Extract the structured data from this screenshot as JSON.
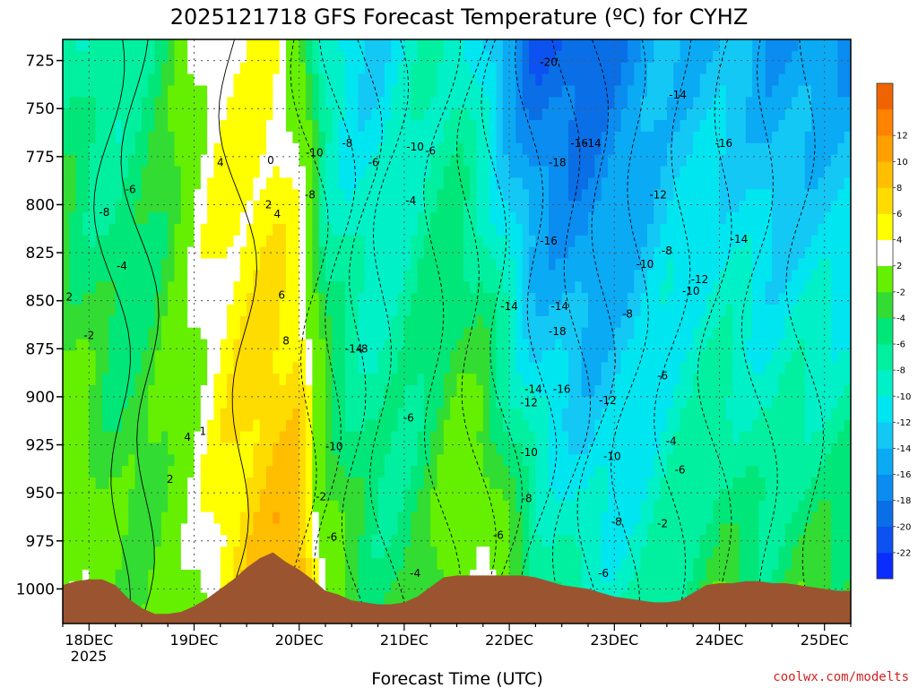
{
  "chart_data": {
    "type": "heatmap",
    "title": "2025121718 GFS Forecast Temperature (ºC) for CYHZ",
    "xlabel": "Forecast Time (UTC)",
    "ylabel": "",
    "credit": "coolwx.com/modelts",
    "y_axis": {
      "reversed": true,
      "ylim": [
        1018,
        714
      ],
      "ticks": [
        725,
        750,
        775,
        800,
        825,
        850,
        875,
        900,
        925,
        950,
        975,
        1000
      ],
      "tick_labels": [
        "725",
        "750",
        "775",
        "800",
        "825",
        "850",
        "875",
        "900",
        "925",
        "950",
        "975",
        "1000"
      ]
    },
    "x_axis": {
      "xlim": [
        0,
        180
      ],
      "ticks": [
        6,
        30,
        54,
        78,
        102,
        126,
        150,
        174
      ],
      "tick_labels": [
        "18DEC",
        "19DEC",
        "20DEC",
        "21DEC",
        "22DEC",
        "23DEC",
        "24DEC",
        "25DEC"
      ],
      "year_label": "2025"
    },
    "grid": true,
    "colorbar": {
      "levels": [
        -24,
        -22,
        -20,
        -18,
        -16,
        -14,
        -12,
        -10,
        -8,
        -6,
        -4,
        -2,
        2,
        4,
        6,
        8,
        10,
        12,
        14
      ],
      "labels": [
        "-22",
        "-20",
        "-18",
        "-16",
        "-14",
        "-12",
        "-10",
        "-8",
        "-6",
        "-4",
        "-2",
        "2",
        "4",
        "6",
        "8",
        "10",
        "12"
      ],
      "colors": [
        "#0a2cff",
        "#0c52f0",
        "#0a6ee6",
        "#0a8cf0",
        "#0aaaf5",
        "#14c8f5",
        "#00e6f0",
        "#00f0c8",
        "#00f0a0",
        "#00e678",
        "#32dc32",
        "#64f000",
        "#ffffff",
        "#ffff00",
        "#ffdc00",
        "#ffbe00",
        "#ffa000",
        "#ff8200",
        "#f06400"
      ]
    },
    "terrain_color": "#9a5530",
    "terrain_pressure": [
      [
        0,
        998
      ],
      [
        3,
        996
      ],
      [
        6,
        995
      ],
      [
        9,
        995
      ],
      [
        12,
        998
      ],
      [
        15,
        1005
      ],
      [
        18,
        1010
      ],
      [
        21,
        1013
      ],
      [
        24,
        1013
      ],
      [
        27,
        1012
      ],
      [
        30,
        1009
      ],
      [
        33,
        1005
      ],
      [
        36,
        1000
      ],
      [
        39,
        995
      ],
      [
        42,
        989
      ],
      [
        45,
        984
      ],
      [
        48,
        981
      ],
      [
        51,
        986
      ],
      [
        54,
        990
      ],
      [
        57,
        995
      ],
      [
        60,
        1001
      ],
      [
        63,
        1003
      ],
      [
        66,
        1006
      ],
      [
        69,
        1007
      ],
      [
        72,
        1008
      ],
      [
        75,
        1008
      ],
      [
        78,
        1007
      ],
      [
        81,
        1004
      ],
      [
        84,
        999
      ],
      [
        87,
        994
      ],
      [
        90,
        993
      ],
      [
        93,
        993
      ],
      [
        96,
        993
      ],
      [
        99,
        993
      ],
      [
        102,
        993
      ],
      [
        105,
        993
      ],
      [
        108,
        994
      ],
      [
        111,
        996
      ],
      [
        114,
        998
      ],
      [
        117,
        999
      ],
      [
        120,
        1000
      ],
      [
        123,
        1002
      ],
      [
        126,
        1004
      ],
      [
        129,
        1005
      ],
      [
        132,
        1006
      ],
      [
        135,
        1007
      ],
      [
        138,
        1007
      ],
      [
        141,
        1006
      ],
      [
        144,
        1002
      ],
      [
        147,
        998
      ],
      [
        150,
        997
      ],
      [
        153,
        997
      ],
      [
        156,
        996
      ],
      [
        159,
        996
      ],
      [
        162,
        997
      ],
      [
        165,
        997
      ],
      [
        168,
        998
      ],
      [
        171,
        999
      ],
      [
        174,
        1000
      ],
      [
        177,
        1001
      ],
      [
        180,
        1001
      ]
    ],
    "temperature_profile": {
      "description_levels": [
        725,
        750,
        775,
        800,
        825,
        850,
        875,
        900,
        925,
        950,
        975,
        1000
      ],
      "times": [
        0,
        6,
        12,
        18,
        24,
        30,
        36,
        42,
        48,
        54,
        60,
        66,
        72,
        78,
        84,
        90,
        96,
        102,
        108,
        114,
        120,
        126,
        132,
        138,
        144,
        150,
        156,
        162,
        168,
        174,
        180
      ],
      "surface_temperature": [
        3,
        2,
        -1,
        -2,
        0,
        2,
        5,
        8,
        10,
        12,
        2,
        -2,
        -4,
        -4,
        -2,
        2,
        4,
        0,
        -4,
        -6,
        -8,
        -8,
        -8,
        -6,
        -4,
        -2,
        -4,
        -4,
        -2,
        -2,
        -2
      ],
      "aloft_cold_minimum": [
        -6,
        -8,
        -8,
        -6,
        -4,
        2,
        4,
        4,
        4,
        0,
        -10,
        -12,
        -12,
        -10,
        -8,
        -8,
        -12,
        -16,
        -20,
        -20,
        -20,
        -18,
        -16,
        -14,
        -14,
        -14,
        -14,
        -16,
        -16,
        -16,
        -16
      ]
    },
    "contour_labels": [
      {
        "t": 1.5,
        "p": 848,
        "text": "2"
      },
      {
        "t": 6,
        "p": 868,
        "text": "-2"
      },
      {
        "t": 15.5,
        "p": 792,
        "text": "-6"
      },
      {
        "t": 9.5,
        "p": 804,
        "text": "-8"
      },
      {
        "t": 13.5,
        "p": 832,
        "text": "-4"
      },
      {
        "t": 28.5,
        "p": 921,
        "text": "4"
      },
      {
        "t": 32,
        "p": 918,
        "text": "1"
      },
      {
        "t": 24.5,
        "p": 943,
        "text": "2"
      },
      {
        "t": 36,
        "p": 778,
        "text": "4"
      },
      {
        "t": 47.5,
        "p": 777,
        "text": "0"
      },
      {
        "t": 47,
        "p": 800,
        "text": "2"
      },
      {
        "t": 49,
        "p": 805,
        "text": "4"
      },
      {
        "t": 50,
        "p": 847,
        "text": "6"
      },
      {
        "t": 51,
        "p": 871,
        "text": "8"
      },
      {
        "t": 57.5,
        "p": 773,
        "text": "-10"
      },
      {
        "t": 56.5,
        "p": 795,
        "text": "-8"
      },
      {
        "t": 65,
        "p": 768,
        "text": "-8"
      },
      {
        "t": 71,
        "p": 778,
        "text": "-6"
      },
      {
        "t": 80.5,
        "p": 770,
        "text": "-10"
      },
      {
        "t": 84,
        "p": 772,
        "text": "-6"
      },
      {
        "t": 79.5,
        "p": 798,
        "text": "-4"
      },
      {
        "t": 66.5,
        "p": 875,
        "text": "-14"
      },
      {
        "t": 68.5,
        "p": 875,
        "text": "-8"
      },
      {
        "t": 79,
        "p": 911,
        "text": "-6"
      },
      {
        "t": 62,
        "p": 926,
        "text": "-10"
      },
      {
        "t": 59,
        "p": 952,
        "text": "-2"
      },
      {
        "t": 61.5,
        "p": 973,
        "text": "-6"
      },
      {
        "t": 80.5,
        "p": 992,
        "text": "-4"
      },
      {
        "t": 99.5,
        "p": 972,
        "text": "-6"
      },
      {
        "t": 111,
        "p": 726,
        "text": "-20"
      },
      {
        "t": 118,
        "p": 768,
        "text": "-16"
      },
      {
        "t": 121,
        "p": 768,
        "text": "-14"
      },
      {
        "t": 113,
        "p": 778,
        "text": "-18"
      },
      {
        "t": 111,
        "p": 819,
        "text": "-16"
      },
      {
        "t": 102,
        "p": 853,
        "text": "-14"
      },
      {
        "t": 113.5,
        "p": 853,
        "text": "-14"
      },
      {
        "t": 113,
        "p": 866,
        "text": "-18"
      },
      {
        "t": 107.5,
        "p": 896,
        "text": "-14"
      },
      {
        "t": 114,
        "p": 896,
        "text": "-16"
      },
      {
        "t": 106.5,
        "p": 903,
        "text": "-12"
      },
      {
        "t": 124.5,
        "p": 902,
        "text": "-12"
      },
      {
        "t": 106.5,
        "p": 929,
        "text": "-10"
      },
      {
        "t": 106,
        "p": 953,
        "text": "-8"
      },
      {
        "t": 125.5,
        "p": 931,
        "text": "-10"
      },
      {
        "t": 126.5,
        "p": 965,
        "text": "-8"
      },
      {
        "t": 123.5,
        "p": 992,
        "text": "-6"
      },
      {
        "t": 140.5,
        "p": 743,
        "text": "-14"
      },
      {
        "t": 151,
        "p": 768,
        "text": "-16"
      },
      {
        "t": 136,
        "p": 795,
        "text": "-12"
      },
      {
        "t": 133,
        "p": 831,
        "text": "-10"
      },
      {
        "t": 138,
        "p": 824,
        "text": "-8"
      },
      {
        "t": 145.5,
        "p": 839,
        "text": "-12"
      },
      {
        "t": 143.5,
        "p": 845,
        "text": "-10"
      },
      {
        "t": 154.5,
        "p": 818,
        "text": "-14"
      },
      {
        "t": 129,
        "p": 857,
        "text": "-8"
      },
      {
        "t": 137,
        "p": 889,
        "text": "-6"
      },
      {
        "t": 139,
        "p": 923,
        "text": "-4"
      },
      {
        "t": 141,
        "p": 938,
        "text": "-6"
      },
      {
        "t": 137,
        "p": 966,
        "text": "-2"
      }
    ]
  }
}
